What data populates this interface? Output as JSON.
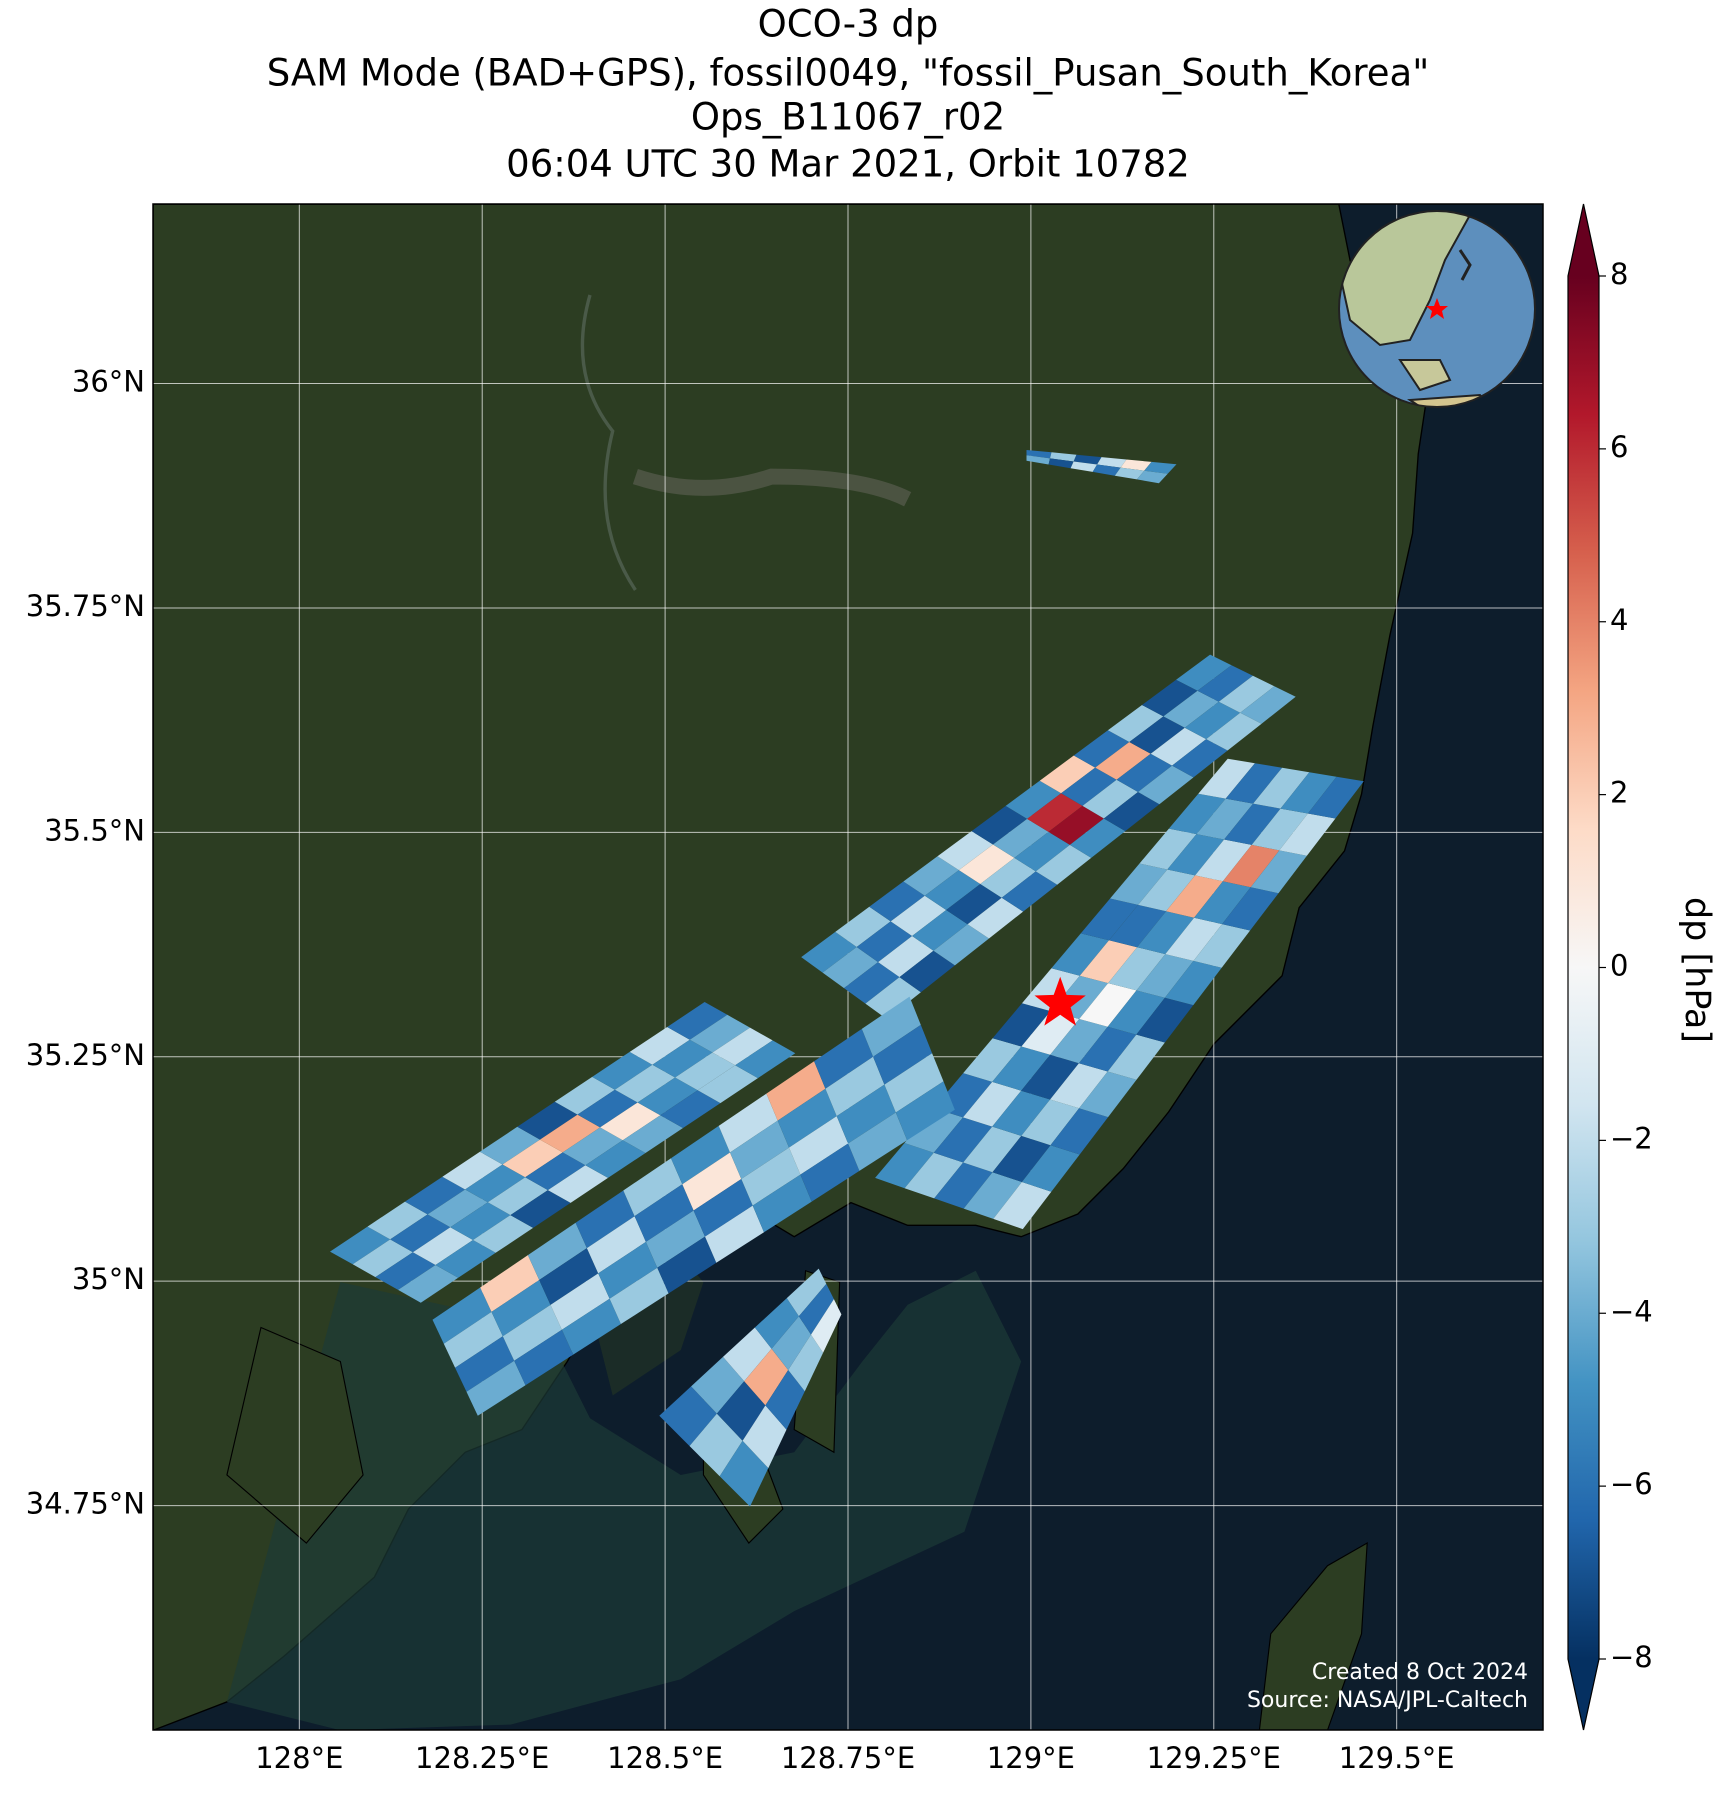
{
  "chart_data": {
    "type": "swath-map",
    "title": [
      "OCO-3 dp",
      "SAM Mode (BAD+GPS), fossil0049, \"fossil_Pusan_South_Korea\"",
      "Ops_B11067_r02",
      "06:04 UTC 30 Mar 2021, Orbit 10782"
    ],
    "xlim": [
      127.8,
      129.7
    ],
    "ylim": [
      34.5,
      36.2
    ],
    "xticks": [
      {
        "value": 128,
        "label": "128°E"
      },
      {
        "value": 128.25,
        "label": "128.25°E"
      },
      {
        "value": 128.5,
        "label": "128.5°E"
      },
      {
        "value": 128.75,
        "label": "128.75°E"
      },
      {
        "value": 129,
        "label": "129°E"
      },
      {
        "value": 129.25,
        "label": "129.25°E"
      },
      {
        "value": 129.5,
        "label": "129.5°E"
      }
    ],
    "yticks": [
      {
        "value": 34.75,
        "label": "34.75°N"
      },
      {
        "value": 35,
        "label": "35°N"
      },
      {
        "value": 35.25,
        "label": "35.25°N"
      },
      {
        "value": 35.5,
        "label": "35.5°N"
      },
      {
        "value": 35.75,
        "label": "35.75°N"
      },
      {
        "value": 36,
        "label": "36°N"
      }
    ],
    "grid": true,
    "colormap": "RdBu_r",
    "colorbar_label": "dp [hPa]",
    "clim": [
      -8,
      8
    ],
    "cticks": [
      -8,
      -6,
      -4,
      -2,
      0,
      2,
      4,
      6,
      8
    ],
    "target": {
      "lon": 129.04,
      "lat": 35.309
    },
    "swaths": [
      {
        "corners": [
          [
            128.994,
            35.926
          ],
          [
            129.199,
            35.91
          ],
          [
            129.175,
            35.889
          ],
          [
            128.994,
            35.914
          ]
        ],
        "dp": [
          [
            -6,
            -3,
            -7,
            -2,
            1,
            -5
          ],
          [
            -4,
            -7,
            -2,
            -6,
            -3,
            -4
          ]
        ]
      },
      {
        "corners": [
          [
            128.686,
            35.361
          ],
          [
            129.245,
            35.698
          ],
          [
            129.362,
            35.651
          ],
          [
            128.803,
            35.292
          ]
        ],
        "dp": [
          [
            -5,
            -3,
            -6,
            -4,
            -2,
            -7,
            -5,
            2,
            -6,
            -3,
            -7,
            -5
          ],
          [
            -4,
            -6,
            -2,
            -5,
            1,
            -4,
            6,
            -6,
            3,
            -7,
            -4,
            -6
          ],
          [
            -6,
            -2,
            -5,
            -7,
            -3,
            -5,
            7,
            -3,
            -6,
            -2,
            -5,
            -3
          ],
          [
            -3,
            -7,
            -4,
            -2,
            -6,
            -3,
            -5,
            -7,
            -4,
            -6,
            -3,
            -4
          ]
        ]
      },
      {
        "corners": [
          [
            128.787,
            35.115
          ],
          [
            129.269,
            35.582
          ],
          [
            129.455,
            35.557
          ],
          [
            128.989,
            35.058
          ]
        ],
        "dp": [
          [
            -5,
            -4,
            -6,
            -3,
            -7,
            -2,
            -5,
            -6,
            -4,
            -3,
            -5,
            -2
          ],
          [
            -3,
            -6,
            -2,
            -5,
            -1,
            -4,
            2,
            -6,
            -3,
            -5,
            -4,
            -6
          ],
          [
            -6,
            -3,
            -5,
            -7,
            -4,
            0,
            -3,
            -5,
            3,
            -2,
            -6,
            -3
          ],
          [
            -4,
            -7,
            -3,
            -2,
            -6,
            -5,
            -4,
            -2,
            -5,
            4,
            -3,
            -5
          ],
          [
            -2,
            -5,
            -6,
            -4,
            -3,
            -7,
            -5,
            -3,
            -6,
            -4,
            -2,
            -6
          ]
        ]
      },
      {
        "corners": [
          [
            128.042,
            35.033
          ],
          [
            128.554,
            35.311
          ],
          [
            128.678,
            35.254
          ],
          [
            128.166,
            34.976
          ]
        ],
        "dp": [
          [
            -5,
            -3,
            -6,
            -2,
            -4,
            -7,
            -3,
            -5,
            -2,
            -6
          ],
          [
            -3,
            -6,
            -4,
            -5,
            2,
            3,
            -6,
            -3,
            -5,
            -4
          ],
          [
            -6,
            -2,
            -5,
            -3,
            -6,
            -4,
            1,
            -5,
            -3,
            -2
          ],
          [
            -4,
            -5,
            -3,
            -7,
            -2,
            -5,
            -4,
            -6,
            -3,
            -5
          ]
        ]
      },
      {
        "corners": [
          [
            128.182,
            34.957
          ],
          [
            128.834,
            35.317
          ],
          [
            128.896,
            35.191
          ],
          [
            128.244,
            34.85
          ]
        ],
        "dp": [
          [
            -5,
            2,
            -4,
            -6,
            -3,
            -5,
            -2,
            3,
            -6,
            -4
          ],
          [
            -3,
            -5,
            -7,
            -2,
            -6,
            1,
            -4,
            -5,
            -3,
            -6
          ],
          [
            -6,
            -3,
            -2,
            -5,
            -4,
            -6,
            -3,
            -2,
            -5,
            -3
          ],
          [
            -4,
            -6,
            -5,
            -3,
            -7,
            -2,
            -5,
            -6,
            -4,
            -5
          ]
        ]
      },
      {
        "corners": [
          [
            128.492,
            34.85
          ],
          [
            128.71,
            35.014
          ],
          [
            128.741,
            34.963
          ],
          [
            128.616,
            34.749
          ]
        ],
        "dp": [
          [
            -6,
            -4,
            -2,
            -5,
            -3
          ],
          [
            -3,
            -7,
            3,
            -4,
            -6
          ],
          [
            -5,
            -2,
            -6,
            -3,
            -1
          ]
        ]
      }
    ],
    "credits": [
      "Created 8 Oct 2024",
      "Source: NASA/JPL-Caltech"
    ]
  }
}
